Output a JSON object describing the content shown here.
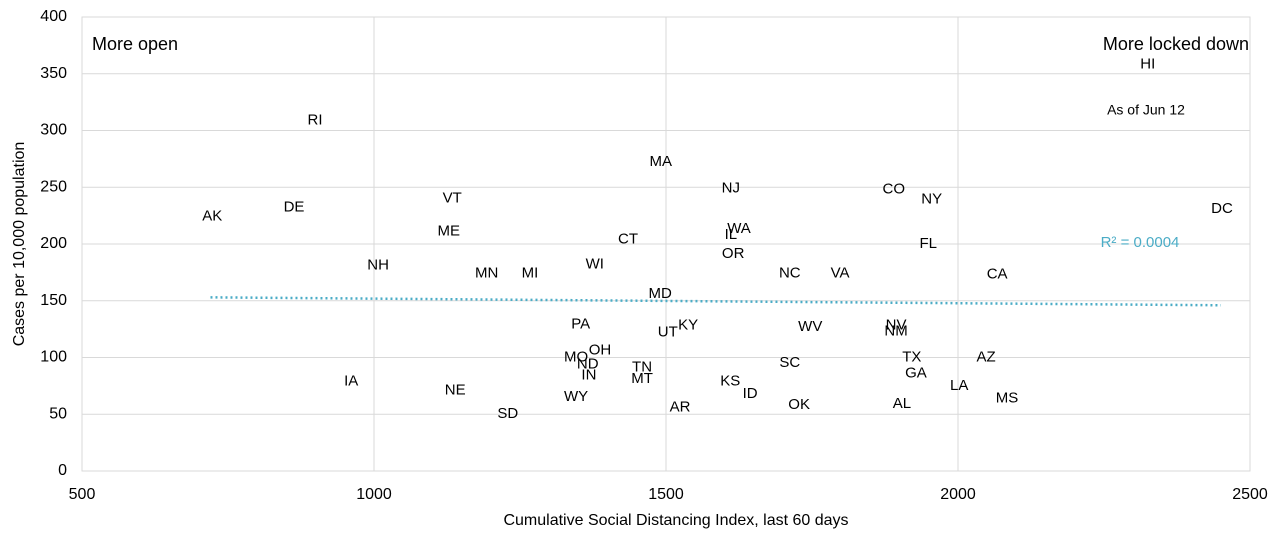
{
  "chart_data": {
    "type": "scatter",
    "xlabel": "Cumulative Social Distancing Index, last 60 days",
    "ylabel": "Cases per 10,000 population",
    "xlim": [
      500,
      2500
    ],
    "xticks": [
      500,
      1000,
      1500,
      2000,
      2500
    ],
    "ylim": [
      0,
      400
    ],
    "yticks": [
      0,
      50,
      100,
      150,
      200,
      250,
      300,
      350,
      400
    ],
    "grid": true,
    "labels": [
      "HI",
      "RI",
      "MA",
      "NJ",
      "CO",
      "NY",
      "VT",
      "AK",
      "DE",
      "DC",
      "WA",
      "IL",
      "ME",
      "CT",
      "FL",
      "OR",
      "NH",
      "WI",
      "MN",
      "MI",
      "NC",
      "VA",
      "CA",
      "MD",
      "PA",
      "KY",
      "UT",
      "WV",
      "NV",
      "NM",
      "OH",
      "MO",
      "ND",
      "TX",
      "AZ",
      "SC",
      "TN",
      "IN",
      "GA",
      "IA",
      "MT",
      "KS",
      "NE",
      "LA",
      "ID",
      "MS",
      "WY",
      "AR",
      "OK",
      "AL",
      "SD"
    ],
    "x": [
      2325,
      899,
      1491,
      1611,
      1890,
      1955,
      1134,
      723,
      863,
      2452,
      1625,
      1611,
      1128,
      1435,
      1949,
      1615,
      1007,
      1378,
      1193,
      1267,
      1712,
      1798,
      2067,
      1490,
      1354,
      1538,
      1503,
      1747,
      1894,
      1894,
      1387,
      1346,
      1366,
      1921,
      2048,
      1712,
      1459,
      1368,
      1928,
      961,
      1459,
      1610,
      1139,
      2002,
      1644,
      2084,
      1346,
      1524,
      1728,
      1904,
      1229
    ],
    "values": [
      358,
      309,
      272,
      249,
      248,
      239,
      240,
      224,
      232,
      231,
      213,
      208,
      211,
      204,
      200,
      191,
      181,
      182,
      174,
      174,
      174,
      174,
      173,
      156,
      129,
      128,
      122,
      127,
      128,
      123,
      106,
      100,
      94,
      100,
      100,
      95,
      91,
      84,
      86,
      79,
      81,
      79,
      71,
      75,
      68,
      64,
      65,
      56,
      58,
      59,
      50
    ],
    "trendline": {
      "x": [
        720,
        2450
      ],
      "values": [
        153,
        146
      ],
      "color": "#4bacc6",
      "label": "R² = 0.0004"
    },
    "annotations": [
      "More open",
      "More locked down",
      "As of Jun 12"
    ]
  }
}
